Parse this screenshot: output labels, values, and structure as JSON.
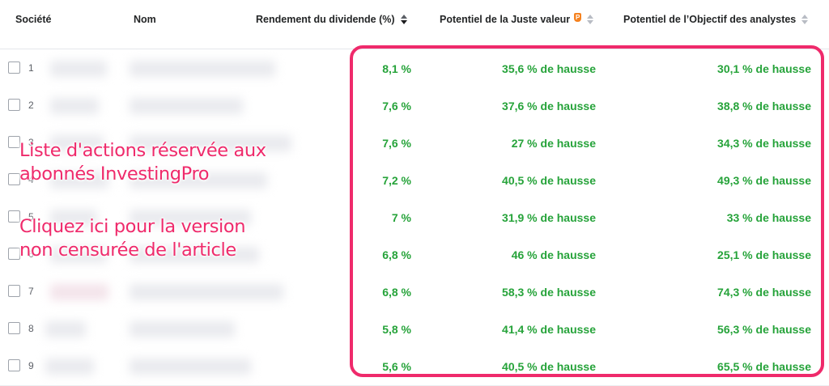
{
  "table": {
    "headers": {
      "company": "Société",
      "name": "Nom",
      "dividend": "Rendement du dividende (%)",
      "fair_value": "Potentiel de la Juste valeur",
      "analysts": "Potentiel de l’Objectif des analystes"
    },
    "pro_icon_glyph": "P",
    "rows": [
      {
        "num": "1",
        "dividend": "8,1 %",
        "fair_value": "35,6 % de hausse",
        "analysts": "30,1 % de hausse"
      },
      {
        "num": "2",
        "dividend": "7,6 %",
        "fair_value": "37,6 % de hausse",
        "analysts": "38,8 % de hausse"
      },
      {
        "num": "3",
        "dividend": "7,6 %",
        "fair_value": "27 % de hausse",
        "analysts": "34,3 % de hausse"
      },
      {
        "num": "4",
        "dividend": "7,2 %",
        "fair_value": "40,5 % de hausse",
        "analysts": "49,3 % de hausse"
      },
      {
        "num": "5",
        "dividend": "7 %",
        "fair_value": "31,9 % de hausse",
        "analysts": "33 % de hausse"
      },
      {
        "num": "6",
        "dividend": "6,8 %",
        "fair_value": "46 % de hausse",
        "analysts": "25,1 % de hausse"
      },
      {
        "num": "7",
        "dividend": "6,8 %",
        "fair_value": "58,3 % de hausse",
        "analysts": "74,3 % de hausse"
      },
      {
        "num": "8",
        "dividend": "5,8 %",
        "fair_value": "41,4 % de hausse",
        "analysts": "56,3 % de hausse"
      },
      {
        "num": "9",
        "dividend": "5,6 %",
        "fair_value": "40,5 % de hausse",
        "analysts": "65,5 % de hausse"
      }
    ]
  },
  "overlay": {
    "line1": "Liste d'actions réservée aux",
    "line2": "abonnés InvestingPro",
    "line3": "Cliquez ici pour la version",
    "line4": "non censurée de l'article"
  },
  "colors": {
    "positive": "#26a33a",
    "overlay_accent": "#ef2a6b",
    "pro_orange": "#f58220"
  },
  "icons": {
    "sort_active": "sort-desc-icon",
    "sort": "sort-icon",
    "pro": "investingpro-icon"
  }
}
